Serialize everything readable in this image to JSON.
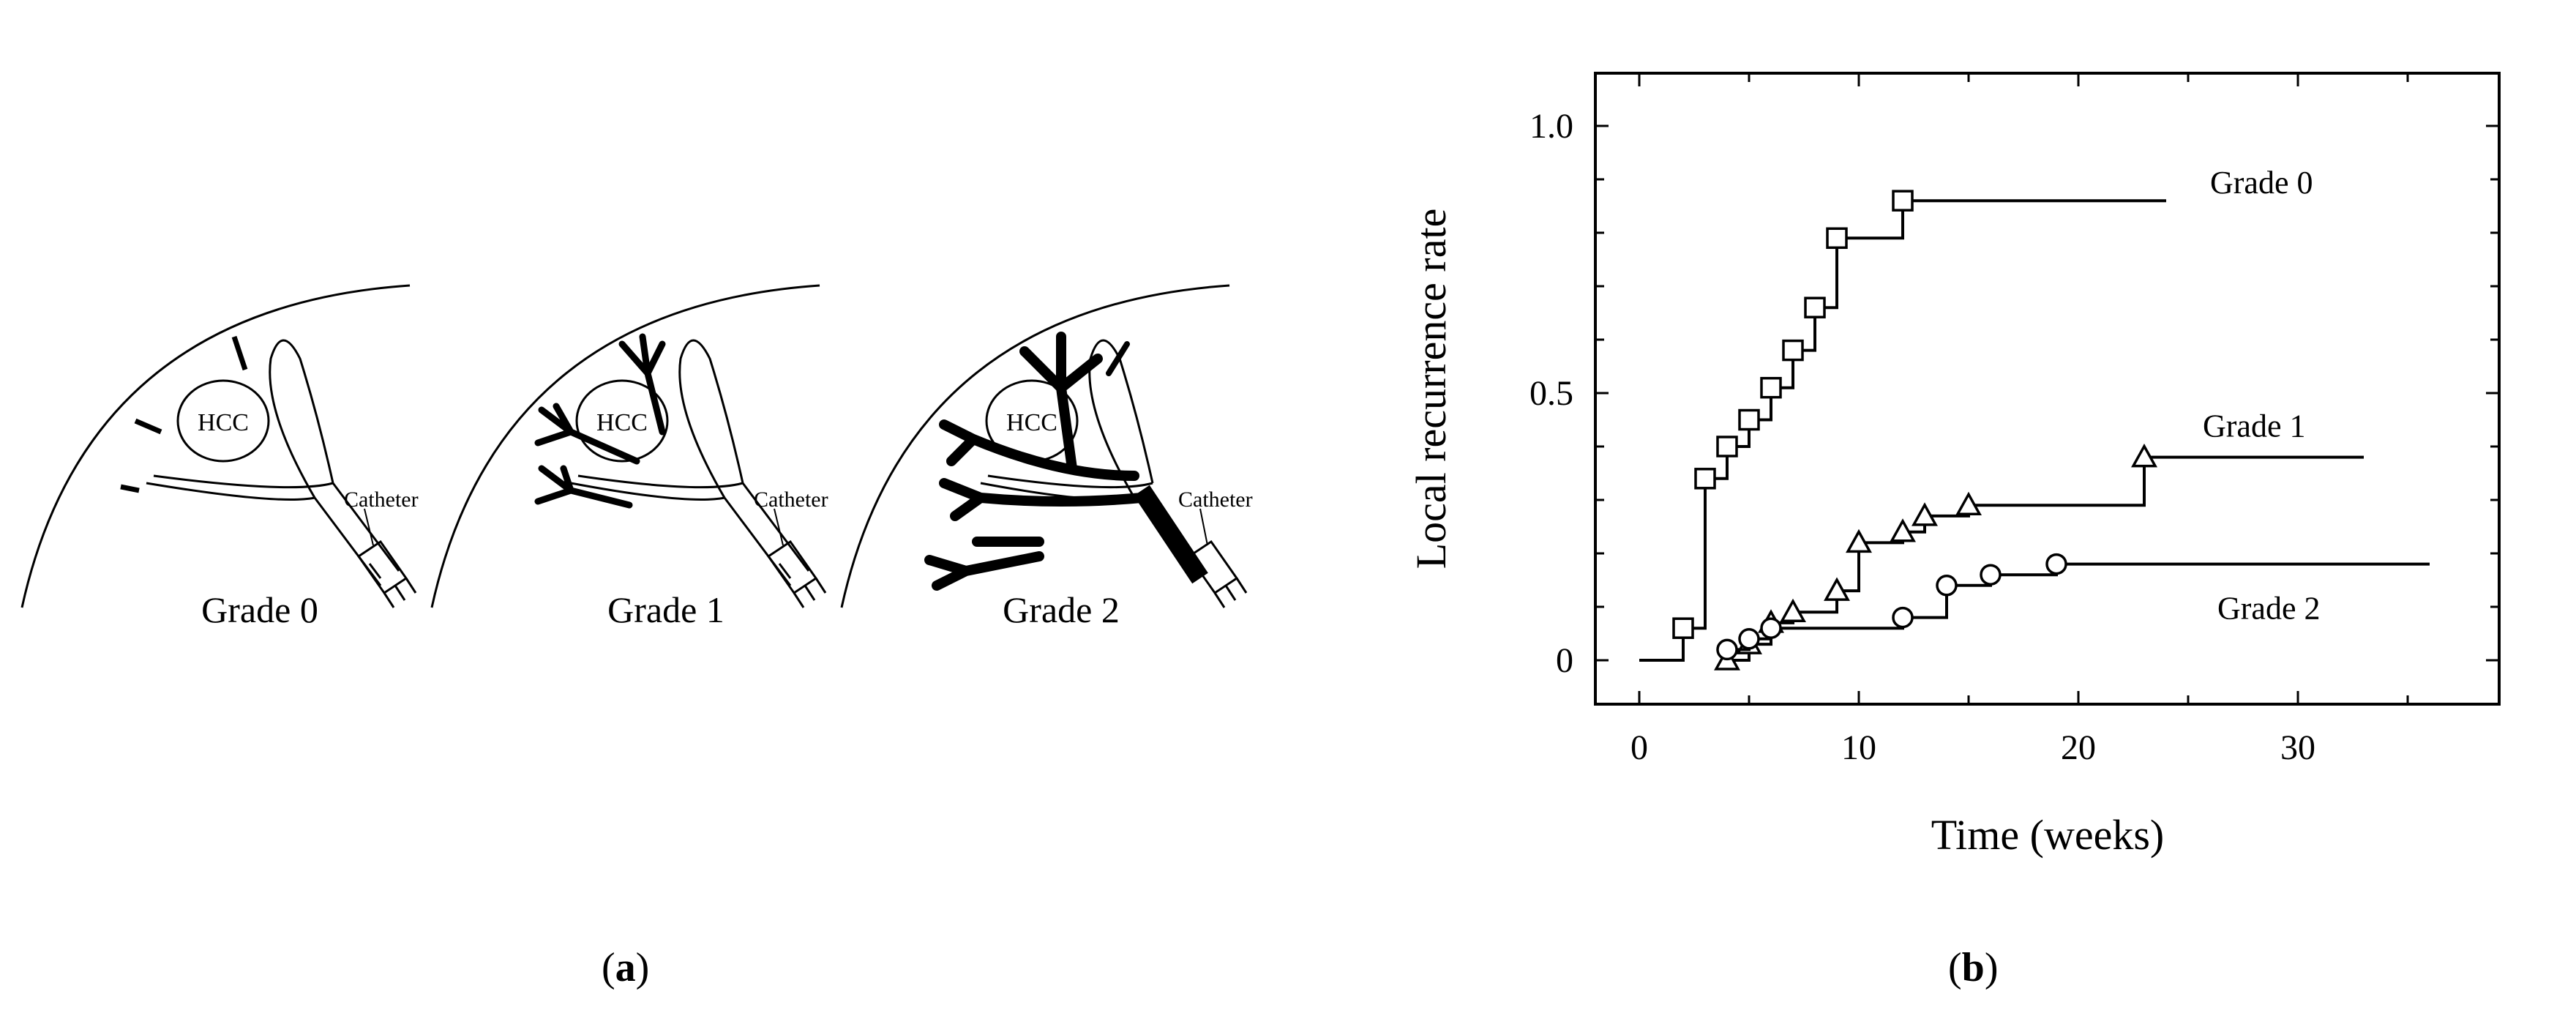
{
  "panel_a": {
    "label": "a",
    "grades": [
      {
        "title": "Grade 0",
        "tumor_label": "HCC",
        "catheter_label": "Catheter"
      },
      {
        "title": "Grade 1",
        "tumor_label": "HCC",
        "catheter_label": "Catheter"
      },
      {
        "title": "Grade 2",
        "tumor_label": "HCC",
        "catheter_label": "Catheter"
      }
    ]
  },
  "panel_b": {
    "label": "b"
  },
  "chart_data": {
    "type": "line",
    "step": true,
    "title": "",
    "xlabel": "Time (weeks)",
    "ylabel": "Local recurrence rate",
    "xlim": [
      0,
      40
    ],
    "ylim": [
      0,
      1.0
    ],
    "xticks": [
      0,
      10,
      20,
      30
    ],
    "xtick_labels": [
      "0",
      "10",
      "20",
      "30"
    ],
    "yticks": [
      0,
      0.5,
      1.0
    ],
    "ytick_labels": [
      "0",
      "0.5",
      "1.0"
    ],
    "grid": false,
    "legend": "inline labels at line ends",
    "series": [
      {
        "name": "Grade 0",
        "marker": "square",
        "x": [
          0,
          2,
          3,
          4,
          5,
          6,
          7,
          8,
          9,
          12,
          24
        ],
        "y": [
          0,
          0.06,
          0.34,
          0.4,
          0.45,
          0.51,
          0.58,
          0.66,
          0.79,
          0.86,
          0.86
        ],
        "marker_x": [
          2,
          3,
          4,
          5,
          6,
          7,
          8,
          9,
          12
        ],
        "marker_y": [
          0.06,
          0.34,
          0.4,
          0.45,
          0.51,
          0.58,
          0.66,
          0.79,
          0.86
        ]
      },
      {
        "name": "Grade 1",
        "marker": "triangle",
        "x": [
          4,
          5,
          6,
          7,
          9,
          10,
          12,
          13,
          15,
          23,
          33
        ],
        "y": [
          0,
          0.03,
          0.07,
          0.09,
          0.13,
          0.22,
          0.24,
          0.27,
          0.29,
          0.38,
          0.38
        ],
        "marker_x": [
          4,
          5,
          6,
          7,
          9,
          10,
          12,
          13,
          15,
          23
        ],
        "marker_y": [
          0,
          0.03,
          0.07,
          0.09,
          0.13,
          0.22,
          0.24,
          0.27,
          0.29,
          0.38
        ]
      },
      {
        "name": "Grade 2",
        "marker": "circle",
        "x": [
          4,
          5,
          6,
          12,
          14,
          16,
          19,
          36
        ],
        "y": [
          0.02,
          0.04,
          0.06,
          0.08,
          0.14,
          0.16,
          0.18,
          0.18
        ],
        "marker_x": [
          4,
          5,
          6,
          12,
          14,
          16,
          19
        ],
        "marker_y": [
          0.02,
          0.04,
          0.06,
          0.08,
          0.14,
          0.16,
          0.18
        ]
      }
    ]
  }
}
